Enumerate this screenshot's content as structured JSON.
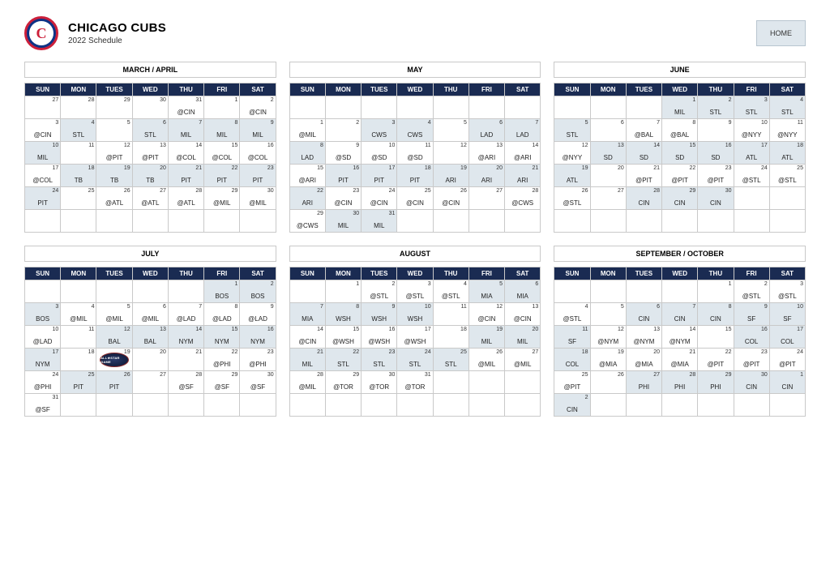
{
  "header": {
    "team": "CHICAGO CUBS",
    "subtitle": "2022 Schedule",
    "logo_letter": "C",
    "logo_outer": "#cc1f3a",
    "logo_inner_bg": "#0e3386",
    "home_label": "HOME"
  },
  "colors": {
    "dow_bg": "#1a2b52",
    "home_cell_bg": "#dfe7ed",
    "border": "#c9c9c9"
  },
  "dow": [
    "SUN",
    "MON",
    "TUES",
    "WED",
    "THU",
    "FRI",
    "SAT"
  ],
  "months": [
    {
      "title": "MARCH / APRIL",
      "cells": [
        {
          "n": "27"
        },
        {
          "n": "28"
        },
        {
          "n": "29"
        },
        {
          "n": "30"
        },
        {
          "n": "31",
          "o": "@CIN"
        },
        {
          "n": "1"
        },
        {
          "n": "2",
          "o": "@CIN"
        },
        {
          "n": "3",
          "o": "@CIN"
        },
        {
          "n": "4",
          "o": "STL",
          "h": true
        },
        {
          "n": "5"
        },
        {
          "n": "6",
          "o": "STL",
          "h": true
        },
        {
          "n": "7",
          "o": "MIL",
          "h": true
        },
        {
          "n": "8",
          "o": "MIL",
          "h": true
        },
        {
          "n": "9",
          "o": "MIL",
          "h": true
        },
        {
          "n": "10",
          "o": "MIL",
          "h": true
        },
        {
          "n": "11"
        },
        {
          "n": "12",
          "o": "@PIT"
        },
        {
          "n": "13",
          "o": "@PIT"
        },
        {
          "n": "14",
          "o": "@COL"
        },
        {
          "n": "15",
          "o": "@COL"
        },
        {
          "n": "16",
          "o": "@COL"
        },
        {
          "n": "17",
          "o": "@COL"
        },
        {
          "n": "18",
          "o": "TB",
          "h": true
        },
        {
          "n": "19",
          "o": "TB",
          "h": true
        },
        {
          "n": "20",
          "o": "TB",
          "h": true
        },
        {
          "n": "21",
          "o": "PIT",
          "h": true
        },
        {
          "n": "22",
          "o": "PIT",
          "h": true
        },
        {
          "n": "23",
          "o": "PIT",
          "h": true
        },
        {
          "n": "24",
          "o": "PIT",
          "h": true
        },
        {
          "n": "25"
        },
        {
          "n": "26",
          "o": "@ATL"
        },
        {
          "n": "27",
          "o": "@ATL"
        },
        {
          "n": "28",
          "o": "@ATL"
        },
        {
          "n": "29",
          "o": "@MIL"
        },
        {
          "n": "30",
          "o": "@MIL"
        },
        {
          "n": ""
        },
        {
          "n": ""
        },
        {
          "n": ""
        },
        {
          "n": ""
        },
        {
          "n": ""
        },
        {
          "n": ""
        },
        {
          "n": ""
        }
      ]
    },
    {
      "title": "MAY",
      "cells": [
        {
          "n": ""
        },
        {
          "n": ""
        },
        {
          "n": ""
        },
        {
          "n": ""
        },
        {
          "n": ""
        },
        {
          "n": ""
        },
        {
          "n": ""
        },
        {
          "n": "1",
          "o": "@MIL"
        },
        {
          "n": "2"
        },
        {
          "n": "3",
          "o": "CWS",
          "h": true
        },
        {
          "n": "4",
          "o": "CWS",
          "h": true
        },
        {
          "n": "5"
        },
        {
          "n": "6",
          "o": "LAD",
          "h": true
        },
        {
          "n": "7",
          "o": "LAD",
          "h": true
        },
        {
          "n": "8",
          "o": "LAD",
          "h": true
        },
        {
          "n": "9",
          "o": "@SD"
        },
        {
          "n": "10",
          "o": "@SD"
        },
        {
          "n": "11",
          "o": "@SD"
        },
        {
          "n": "12"
        },
        {
          "n": "13",
          "o": "@ARI"
        },
        {
          "n": "14",
          "o": "@ARI"
        },
        {
          "n": "15",
          "o": "@ARI"
        },
        {
          "n": "16",
          "o": "PIT",
          "h": true
        },
        {
          "n": "17",
          "o": "PIT",
          "h": true
        },
        {
          "n": "18",
          "o": "PIT",
          "h": true
        },
        {
          "n": "19",
          "o": "ARI",
          "h": true
        },
        {
          "n": "20",
          "o": "ARI",
          "h": true
        },
        {
          "n": "21",
          "o": "ARI",
          "h": true
        },
        {
          "n": "22",
          "o": "ARI",
          "h": true
        },
        {
          "n": "23",
          "o": "@CIN"
        },
        {
          "n": "24",
          "o": "@CIN"
        },
        {
          "n": "25",
          "o": "@CIN"
        },
        {
          "n": "26",
          "o": "@CIN"
        },
        {
          "n": "27"
        },
        {
          "n": "28",
          "o": "@CWS"
        },
        {
          "n": "29",
          "o": "@CWS"
        },
        {
          "n": "30",
          "o": "MIL",
          "h": true
        },
        {
          "n": "31",
          "o": "MIL",
          "h": true
        },
        {
          "n": ""
        },
        {
          "n": ""
        },
        {
          "n": ""
        },
        {
          "n": ""
        }
      ]
    },
    {
      "title": "JUNE",
      "cells": [
        {
          "n": ""
        },
        {
          "n": ""
        },
        {
          "n": ""
        },
        {
          "n": "1",
          "o": "MIL",
          "h": true
        },
        {
          "n": "2",
          "o": "STL",
          "h": true
        },
        {
          "n": "3",
          "o": "STL",
          "h": true
        },
        {
          "n": "4",
          "o": "STL",
          "h": true
        },
        {
          "n": "5",
          "o": "STL",
          "h": true
        },
        {
          "n": "6"
        },
        {
          "n": "7",
          "o": "@BAL"
        },
        {
          "n": "8",
          "o": "@BAL"
        },
        {
          "n": "9"
        },
        {
          "n": "10",
          "o": "@NYY"
        },
        {
          "n": "11",
          "o": "@NYY"
        },
        {
          "n": "12",
          "o": "@NYY"
        },
        {
          "n": "13",
          "o": "SD",
          "h": true
        },
        {
          "n": "14",
          "o": "SD",
          "h": true
        },
        {
          "n": "15",
          "o": "SD",
          "h": true
        },
        {
          "n": "16",
          "o": "SD",
          "h": true
        },
        {
          "n": "17",
          "o": "ATL",
          "h": true
        },
        {
          "n": "18",
          "o": "ATL",
          "h": true
        },
        {
          "n": "19",
          "o": "ATL",
          "h": true
        },
        {
          "n": "20"
        },
        {
          "n": "21",
          "o": "@PIT"
        },
        {
          "n": "22",
          "o": "@PIT"
        },
        {
          "n": "23",
          "o": "@PIT"
        },
        {
          "n": "24",
          "o": "@STL"
        },
        {
          "n": "25",
          "o": "@STL"
        },
        {
          "n": "26",
          "o": "@STL"
        },
        {
          "n": "27"
        },
        {
          "n": "28",
          "o": "CIN",
          "h": true
        },
        {
          "n": "29",
          "o": "CIN",
          "h": true
        },
        {
          "n": "30",
          "o": "CIN",
          "h": true
        },
        {
          "n": ""
        },
        {
          "n": ""
        },
        {
          "n": ""
        },
        {
          "n": ""
        },
        {
          "n": ""
        },
        {
          "n": ""
        },
        {
          "n": ""
        },
        {
          "n": ""
        },
        {
          "n": ""
        }
      ]
    },
    {
      "title": "JULY",
      "cells": [
        {
          "n": ""
        },
        {
          "n": ""
        },
        {
          "n": ""
        },
        {
          "n": ""
        },
        {
          "n": ""
        },
        {
          "n": "1",
          "o": "BOS",
          "h": true
        },
        {
          "n": "2",
          "o": "BOS",
          "h": true
        },
        {
          "n": "3",
          "o": "BOS",
          "h": true
        },
        {
          "n": "4",
          "o": "@MIL"
        },
        {
          "n": "5",
          "o": "@MIL"
        },
        {
          "n": "6",
          "o": "@MIL"
        },
        {
          "n": "7",
          "o": "@LAD"
        },
        {
          "n": "8",
          "o": "@LAD"
        },
        {
          "n": "9",
          "o": "@LAD"
        },
        {
          "n": "10",
          "o": "@LAD"
        },
        {
          "n": "11"
        },
        {
          "n": "12",
          "o": "BAL",
          "h": true
        },
        {
          "n": "13",
          "o": "BAL",
          "h": true
        },
        {
          "n": "14",
          "o": "NYM",
          "h": true
        },
        {
          "n": "15",
          "o": "NYM",
          "h": true
        },
        {
          "n": "16",
          "o": "NYM",
          "h": true
        },
        {
          "n": "17",
          "o": "NYM",
          "h": true
        },
        {
          "n": "18"
        },
        {
          "n": "19",
          "asg": true
        },
        {
          "n": "20"
        },
        {
          "n": "21"
        },
        {
          "n": "22",
          "o": "@PHI"
        },
        {
          "n": "23",
          "o": "@PHI"
        },
        {
          "n": "24",
          "o": "@PHI"
        },
        {
          "n": "25",
          "o": "PIT",
          "h": true
        },
        {
          "n": "26",
          "o": "PIT",
          "h": true
        },
        {
          "n": "27"
        },
        {
          "n": "28",
          "o": "@SF"
        },
        {
          "n": "29",
          "o": "@SF"
        },
        {
          "n": "30",
          "o": "@SF"
        },
        {
          "n": "31",
          "o": "@SF"
        },
        {
          "n": ""
        },
        {
          "n": ""
        },
        {
          "n": ""
        },
        {
          "n": ""
        },
        {
          "n": ""
        },
        {
          "n": ""
        }
      ]
    },
    {
      "title": "AUGUST",
      "cells": [
        {
          "n": ""
        },
        {
          "n": "1"
        },
        {
          "n": "2",
          "o": "@STL"
        },
        {
          "n": "3",
          "o": "@STL"
        },
        {
          "n": "4",
          "o": "@STL"
        },
        {
          "n": "5",
          "o": "MIA",
          "h": true
        },
        {
          "n": "6",
          "o": "MIA",
          "h": true
        },
        {
          "n": "7",
          "o": "MIA",
          "h": true
        },
        {
          "n": "8",
          "o": "WSH",
          "h": true
        },
        {
          "n": "9",
          "o": "WSH",
          "h": true
        },
        {
          "n": "10",
          "o": "WSH",
          "h": true
        },
        {
          "n": "11"
        },
        {
          "n": "12",
          "o": "@CIN"
        },
        {
          "n": "13",
          "o": "@CIN"
        },
        {
          "n": "14",
          "o": "@CIN"
        },
        {
          "n": "15",
          "o": "@WSH"
        },
        {
          "n": "16",
          "o": "@WSH"
        },
        {
          "n": "17",
          "o": "@WSH"
        },
        {
          "n": "18"
        },
        {
          "n": "19",
          "o": "MIL",
          "h": true
        },
        {
          "n": "20",
          "o": "MIL",
          "h": true
        },
        {
          "n": "21",
          "o": "MIL",
          "h": true
        },
        {
          "n": "22",
          "o": "STL",
          "h": true
        },
        {
          "n": "23",
          "o": "STL",
          "h": true
        },
        {
          "n": "24",
          "o": "STL",
          "h": true
        },
        {
          "n": "25",
          "o": "STL",
          "h": true
        },
        {
          "n": "26",
          "o": "@MIL"
        },
        {
          "n": "27",
          "o": "@MIL"
        },
        {
          "n": "28",
          "o": "@MIL"
        },
        {
          "n": "29",
          "o": "@TOR"
        },
        {
          "n": "30",
          "o": "@TOR"
        },
        {
          "n": "31",
          "o": "@TOR"
        },
        {
          "n": ""
        },
        {
          "n": ""
        },
        {
          "n": ""
        },
        {
          "n": ""
        },
        {
          "n": ""
        },
        {
          "n": ""
        },
        {
          "n": ""
        },
        {
          "n": ""
        },
        {
          "n": ""
        },
        {
          "n": ""
        }
      ]
    },
    {
      "title": "SEPTEMBER / OCTOBER",
      "cells": [
        {
          "n": ""
        },
        {
          "n": ""
        },
        {
          "n": ""
        },
        {
          "n": ""
        },
        {
          "n": "1"
        },
        {
          "n": "2",
          "o": "@STL"
        },
        {
          "n": "3",
          "o": "@STL"
        },
        {
          "n": "4",
          "o": "@STL"
        },
        {
          "n": "5"
        },
        {
          "n": "6",
          "o": "CIN",
          "h": true
        },
        {
          "n": "7",
          "o": "CIN",
          "h": true
        },
        {
          "n": "8",
          "o": "CIN",
          "h": true
        },
        {
          "n": "9",
          "o": "SF",
          "h": true
        },
        {
          "n": "10",
          "o": "SF",
          "h": true
        },
        {
          "n": "11",
          "o": "SF",
          "h": true
        },
        {
          "n": "12",
          "o": "@NYM"
        },
        {
          "n": "13",
          "o": "@NYM"
        },
        {
          "n": "14",
          "o": "@NYM"
        },
        {
          "n": "15"
        },
        {
          "n": "16",
          "o": "COL",
          "h": true
        },
        {
          "n": "17",
          "o": "COL",
          "h": true
        },
        {
          "n": "18",
          "o": "COL",
          "h": true
        },
        {
          "n": "19",
          "o": "@MIA"
        },
        {
          "n": "20",
          "o": "@MIA"
        },
        {
          "n": "21",
          "o": "@MIA"
        },
        {
          "n": "22",
          "o": "@PIT"
        },
        {
          "n": "23",
          "o": "@PIT"
        },
        {
          "n": "24",
          "o": "@PIT"
        },
        {
          "n": "25",
          "o": "@PIT"
        },
        {
          "n": "26"
        },
        {
          "n": "27",
          "o": "PHI",
          "h": true
        },
        {
          "n": "28",
          "o": "PHI",
          "h": true
        },
        {
          "n": "29",
          "o": "PHI",
          "h": true
        },
        {
          "n": "30",
          "o": "CIN",
          "h": true
        },
        {
          "n": "1",
          "o": "CIN",
          "h": true
        },
        {
          "n": "2",
          "o": "CIN",
          "h": true
        },
        {
          "n": ""
        },
        {
          "n": ""
        },
        {
          "n": ""
        },
        {
          "n": ""
        },
        {
          "n": ""
        },
        {
          "n": ""
        }
      ]
    }
  ],
  "asg_label": "ALL★STAR GAME"
}
